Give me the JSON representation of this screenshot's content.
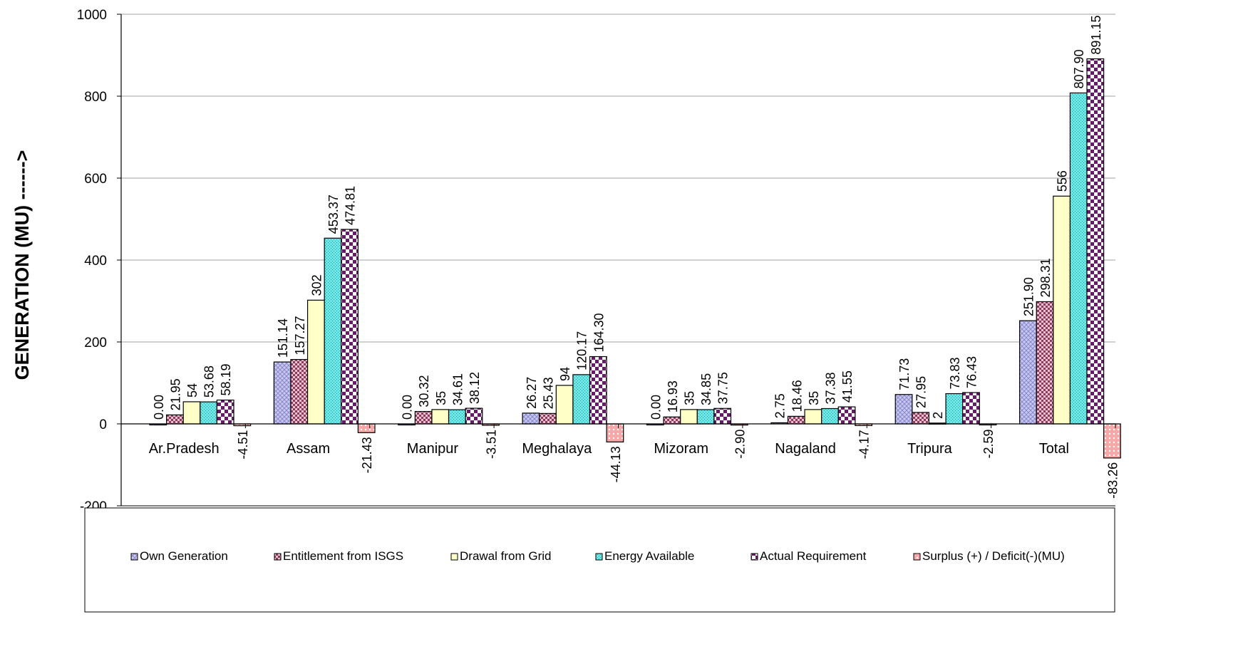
{
  "chart_data": {
    "type": "bar",
    "title": "",
    "xlabel": "",
    "ylabel": "GENERATION (MU) ------>",
    "ylim": [
      -200,
      1000
    ],
    "yticks": [
      -200,
      0,
      200,
      400,
      600,
      800,
      1000
    ],
    "grid": true,
    "legend_position": "bottom",
    "categories": [
      "Ar.Pradesh",
      "Assam",
      "Manipur",
      "Meghalaya",
      "Mizoram",
      "Nagaland",
      "Tripura",
      "Total"
    ],
    "series": [
      {
        "name": "Own Generation",
        "color": "#b4b4e8",
        "pattern": "crosshatch",
        "values": [
          0.0,
          151.14,
          0.0,
          26.27,
          0.0,
          2.75,
          71.73,
          251.9
        ],
        "labels": [
          "0.00",
          "151.14",
          "0.00",
          "26.27",
          "0.00",
          "2.75",
          "71.73",
          "251.90"
        ]
      },
      {
        "name": "Entitlement from ISGS",
        "color": "#a0506e",
        "pattern": "check-small",
        "values": [
          21.95,
          157.27,
          30.32,
          25.43,
          16.93,
          18.46,
          27.95,
          298.31
        ],
        "labels": [
          "21.95",
          "157.27",
          "30.32",
          "25.43",
          "16.93",
          "18.46",
          "27.95",
          "298.31"
        ]
      },
      {
        "name": "Drawal   from Grid",
        "color": "#ffffc8",
        "pattern": "solid",
        "values": [
          54,
          302,
          35,
          94,
          35,
          35,
          2,
          556
        ],
        "labels": [
          "54",
          "302",
          "35",
          "94",
          "35",
          "35",
          "2",
          "556"
        ]
      },
      {
        "name": "Energy Available",
        "color": "#48d8d8",
        "pattern": "dots",
        "values": [
          53.68,
          453.37,
          34.61,
          120.17,
          34.85,
          37.38,
          73.83,
          807.9
        ],
        "labels": [
          "53.68",
          "453.37",
          "34.61",
          "120.17",
          "34.85",
          "37.38",
          "73.83",
          "807.90"
        ]
      },
      {
        "name": "Actual Requirement",
        "color": "#6a1a6a",
        "pattern": "check-large",
        "values": [
          58.19,
          474.81,
          38.12,
          164.3,
          37.75,
          41.55,
          76.43,
          891.15
        ],
        "labels": [
          "58.19",
          "474.81",
          "38.12",
          "164.30",
          "37.75",
          "41.55",
          "76.43",
          "891.15"
        ]
      },
      {
        "name": "Surplus (+) / Deficit(-)(MU)",
        "color": "#f08080",
        "pattern": "dots-pink",
        "values": [
          -4.51,
          -21.43,
          -3.51,
          -44.13,
          -2.9,
          -4.17,
          -2.59,
          -83.26
        ],
        "labels": [
          "-4.51",
          "-21.43",
          "-3.51",
          "-44.13",
          "-2.90",
          "-4.17",
          "-2.59",
          "-83.26"
        ]
      }
    ]
  }
}
